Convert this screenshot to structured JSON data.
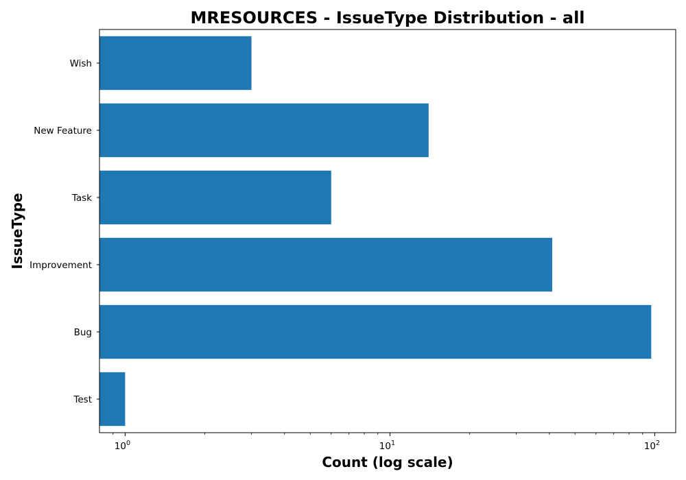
{
  "chart_data": {
    "type": "bar",
    "orientation": "horizontal",
    "title": "MRESOURCES - IssueType Distribution - all",
    "xlabel": "Count (log scale)",
    "ylabel": "IssueType",
    "xscale": "log",
    "xlim": [
      0.8,
      120
    ],
    "x_ticks": [
      {
        "value": 1,
        "base": "10",
        "exp": "0"
      },
      {
        "value": 10,
        "base": "10",
        "exp": "1"
      },
      {
        "value": 100,
        "base": "10",
        "exp": "2"
      }
    ],
    "categories": [
      "Test",
      "Bug",
      "Improvement",
      "Task",
      "New Feature",
      "Wish"
    ],
    "values": [
      1,
      97,
      41,
      6,
      14,
      3
    ],
    "bar_color": "#1f77b4",
    "grid": false,
    "legend": "none"
  }
}
